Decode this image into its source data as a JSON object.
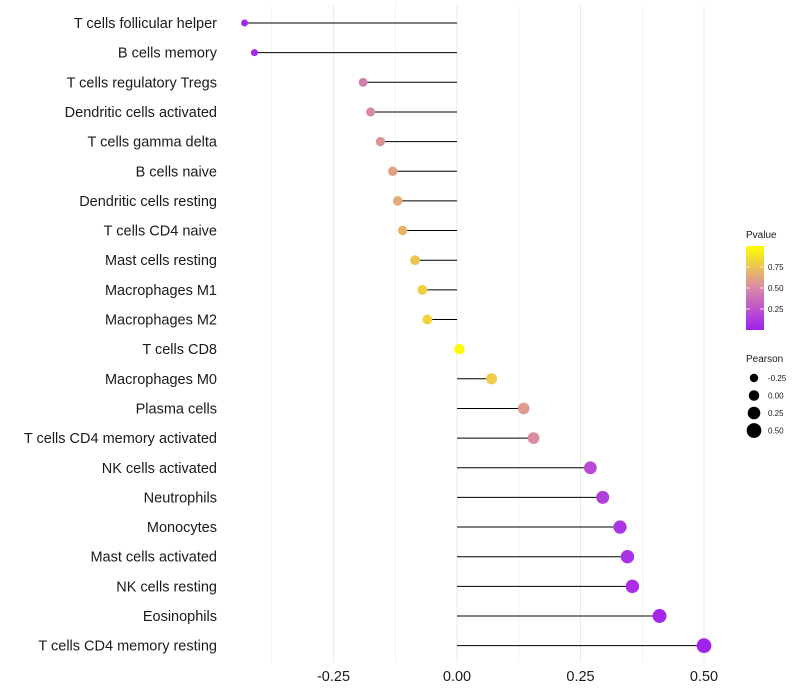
{
  "chart_data": {
    "type": "lollipop",
    "title": "",
    "xlabel": "",
    "ylabel": "",
    "xlim": [
      -0.47,
      0.53
    ],
    "x_ticks": [
      {
        "value": -0.25,
        "label": "-0.25"
      },
      {
        "value": 0.0,
        "label": "0.00"
      },
      {
        "value": 0.25,
        "label": "0.25"
      },
      {
        "value": 0.5,
        "label": "0.50"
      }
    ],
    "grid": true,
    "points": [
      {
        "label": "T cells follicular helper",
        "pearson": -0.43,
        "pvalue": 0.02
      },
      {
        "label": "B cells memory",
        "pearson": -0.41,
        "pvalue": 0.05
      },
      {
        "label": "T cells regulatory  Tregs",
        "pearson": -0.19,
        "pvalue": 0.45
      },
      {
        "label": "Dendritic cells activated",
        "pearson": -0.175,
        "pvalue": 0.5
      },
      {
        "label": "T cells gamma delta",
        "pearson": -0.155,
        "pvalue": 0.55
      },
      {
        "label": "B cells naive",
        "pearson": -0.13,
        "pvalue": 0.6
      },
      {
        "label": "Dendritic cells resting",
        "pearson": -0.12,
        "pvalue": 0.65
      },
      {
        "label": "T cells CD4 naive",
        "pearson": -0.11,
        "pvalue": 0.68
      },
      {
        "label": "Mast cells resting",
        "pearson": -0.085,
        "pvalue": 0.75
      },
      {
        "label": "Macrophages M1",
        "pearson": -0.07,
        "pvalue": 0.8
      },
      {
        "label": "Macrophages M2",
        "pearson": -0.06,
        "pvalue": 0.82
      },
      {
        "label": "T cells CD8",
        "pearson": 0.005,
        "pvalue": 0.98
      },
      {
        "label": "Macrophages M0",
        "pearson": 0.07,
        "pvalue": 0.78
      },
      {
        "label": "Plasma cells",
        "pearson": 0.135,
        "pvalue": 0.58
      },
      {
        "label": "T cells CD4 memory activated",
        "pearson": 0.155,
        "pvalue": 0.52
      },
      {
        "label": "NK cells activated",
        "pearson": 0.27,
        "pvalue": 0.2
      },
      {
        "label": "Neutrophils",
        "pearson": 0.295,
        "pvalue": 0.15
      },
      {
        "label": "Monocytes",
        "pearson": 0.33,
        "pvalue": 0.1
      },
      {
        "label": "Mast cells activated",
        "pearson": 0.345,
        "pvalue": 0.08
      },
      {
        "label": "NK cells resting",
        "pearson": 0.355,
        "pvalue": 0.07
      },
      {
        "label": "Eosinophils",
        "pearson": 0.41,
        "pvalue": 0.04
      },
      {
        "label": "T cells CD4 memory resting",
        "pearson": 0.5,
        "pvalue": 0.01
      }
    ],
    "color_legend": {
      "title": "Pvalue",
      "range": [
        0.0,
        1.0
      ],
      "ticks": [
        {
          "value": 0.25,
          "label": "0.25"
        },
        {
          "value": 0.5,
          "label": "0.50"
        },
        {
          "value": 0.75,
          "label": "0.75"
        }
      ],
      "low_color": "#a020f0",
      "mid_color": "#d988a8",
      "high_color": "#ffff00"
    },
    "size_legend": {
      "title": "Pearson",
      "entries": [
        {
          "value": -0.25,
          "label": "-0.25"
        },
        {
          "value": 0.0,
          "label": "0.00"
        },
        {
          "value": 0.25,
          "label": "0.25"
        },
        {
          "value": 0.5,
          "label": "0.50"
        }
      ]
    }
  }
}
